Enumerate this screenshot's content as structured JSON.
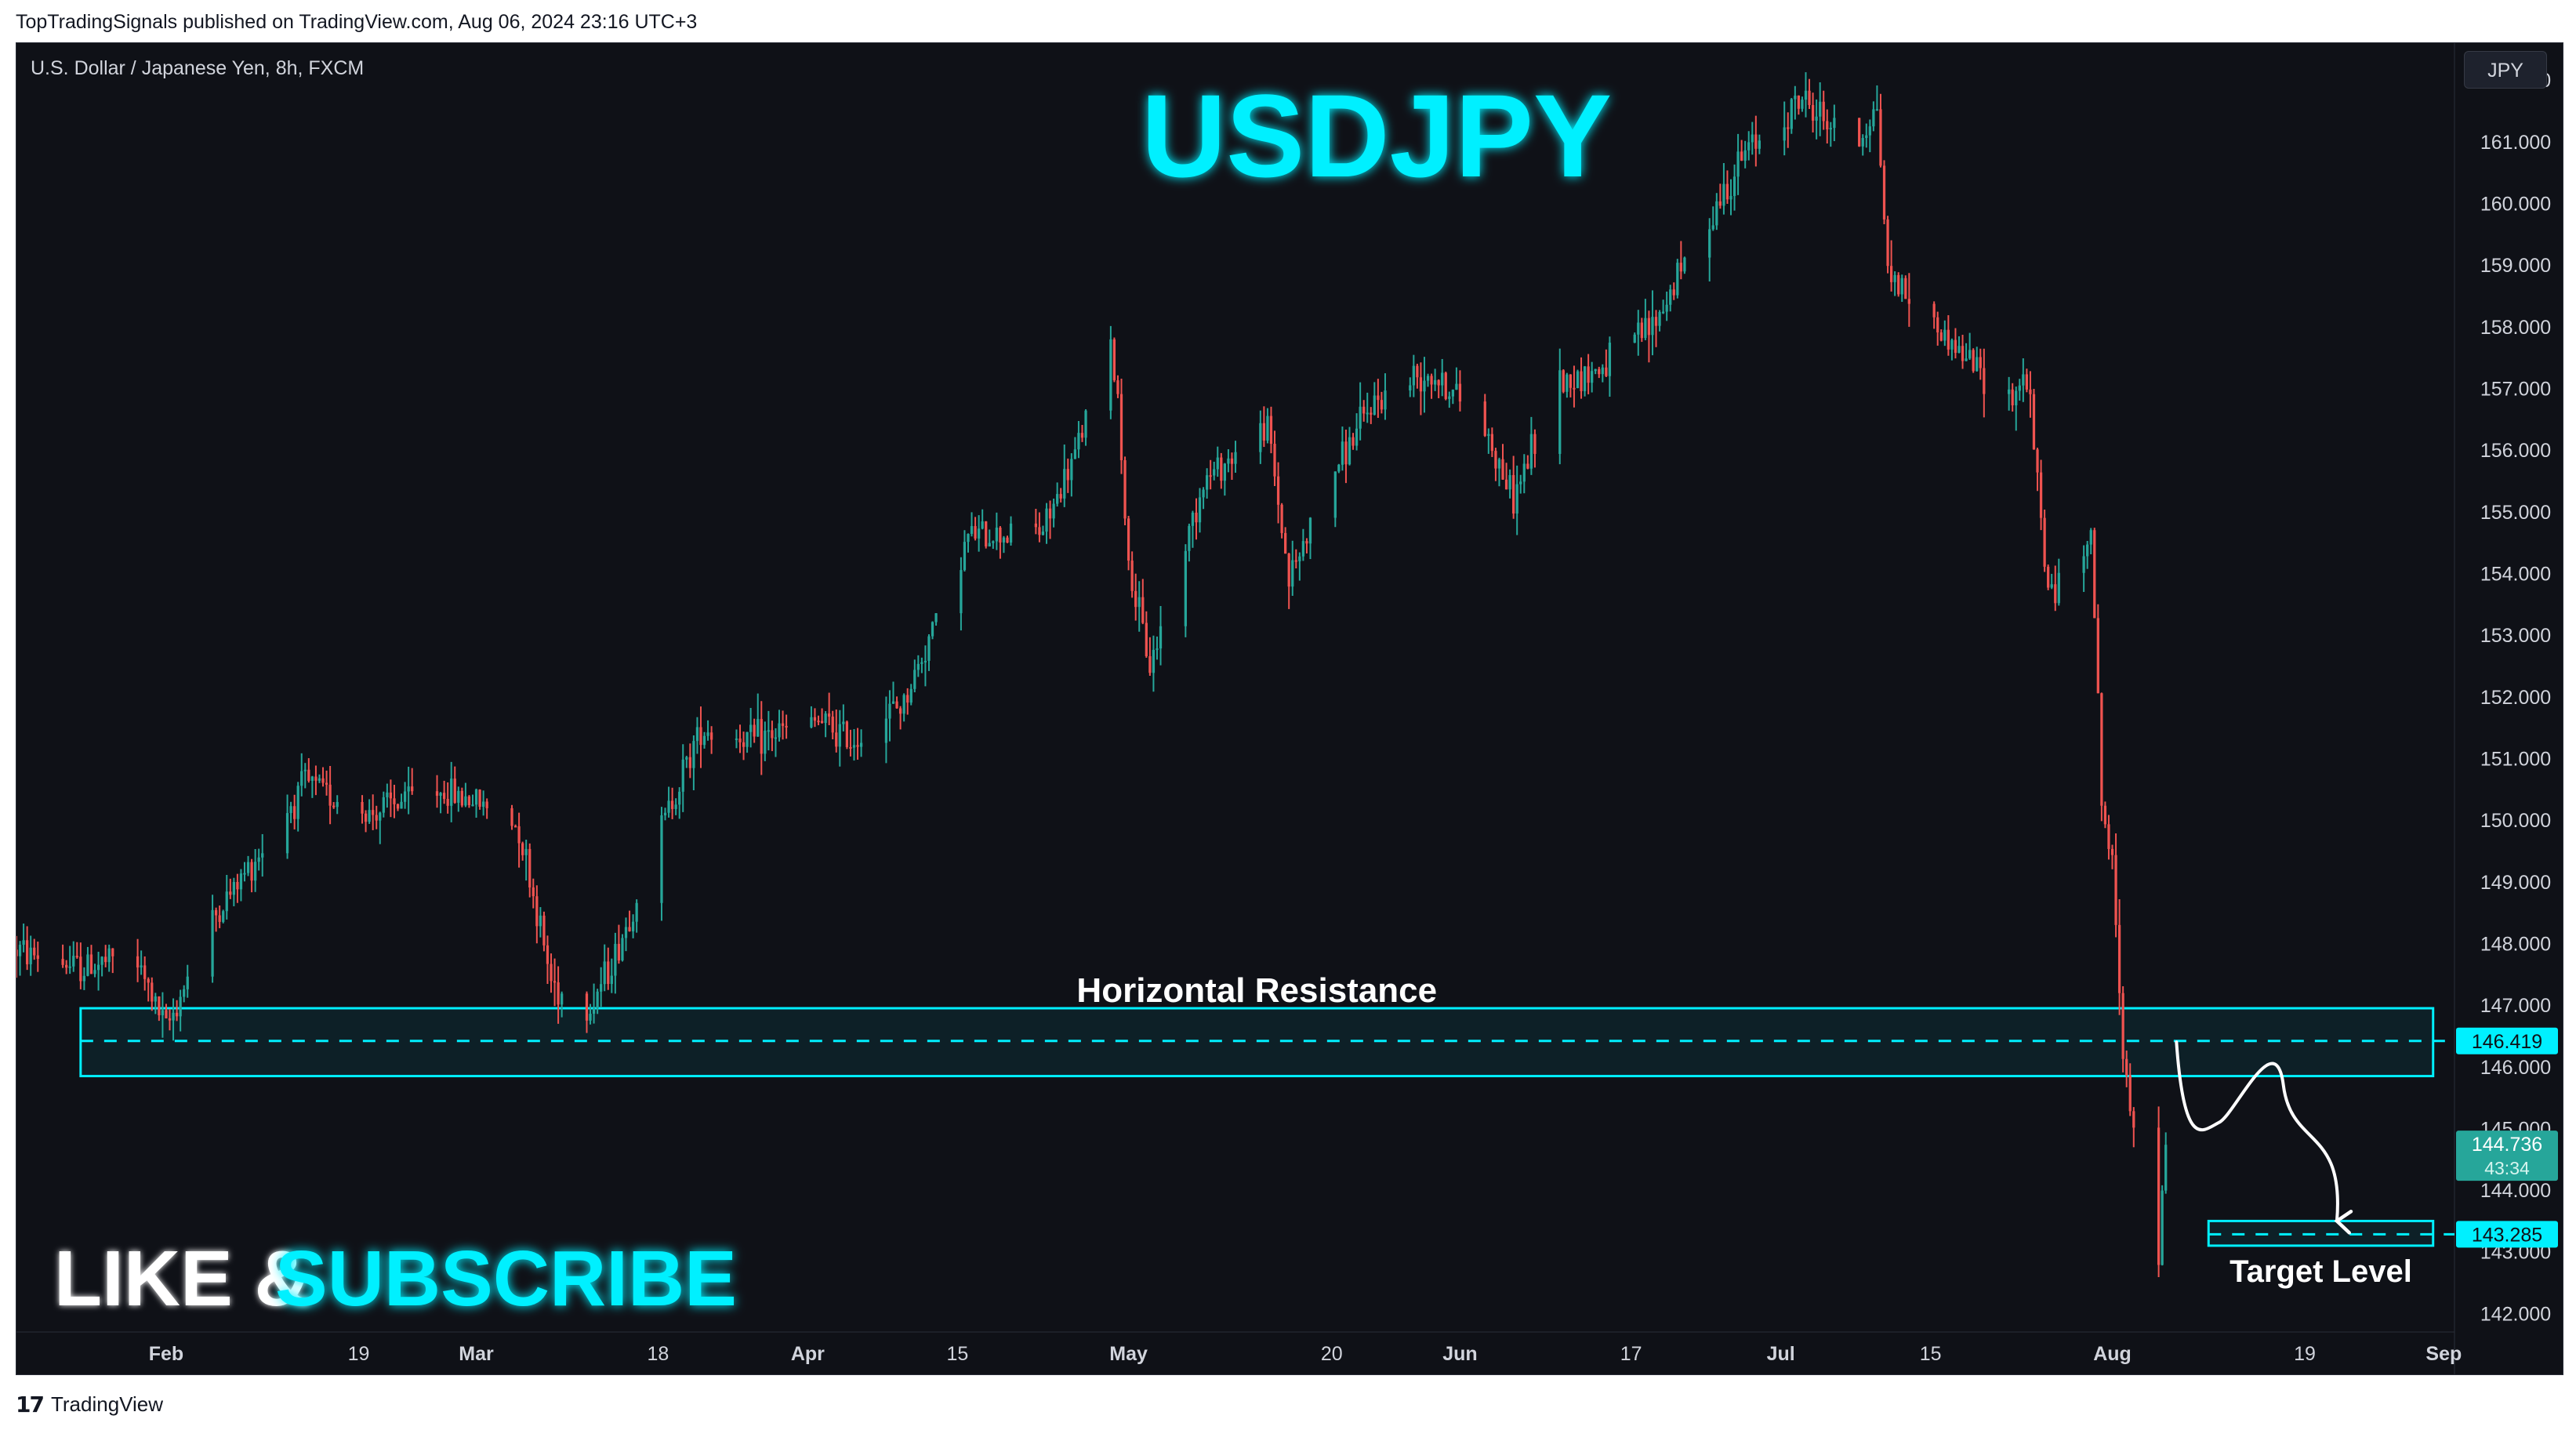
{
  "header": {
    "published_text": "TopTradingSignals published on TradingView.com, Aug 06, 2024 23:16 UTC+3"
  },
  "chart_header": {
    "symbol_description": "U.S. Dollar / Japanese Yen, 8h, FXCM",
    "currency_button": "JPY"
  },
  "footer": {
    "logo_mark": "17",
    "logo_text": "TradingView"
  },
  "colors": {
    "background": "#0f1117",
    "up_candle": "#26a69a",
    "down_candle": "#ef5350",
    "cyan_accent": "#00f0ff",
    "price_label_green": "#26a69a"
  },
  "chart_data": {
    "type": "candlestick",
    "title": "USDJPY",
    "symbol": "U.S. Dollar / Japanese Yen",
    "interval": "8h",
    "source": "FXCM",
    "y_axis": {
      "ylim": [
        141.7,
        162.6
      ],
      "ticks": [
        "162.000",
        "161.000",
        "160.000",
        "159.000",
        "158.000",
        "157.000",
        "156.000",
        "155.000",
        "154.000",
        "153.000",
        "152.000",
        "151.000",
        "150.000",
        "149.000",
        "148.000",
        "147.000",
        "146.000",
        "145.000",
        "144.000",
        "143.000",
        "142.000"
      ],
      "position": "right"
    },
    "x_axis": {
      "ticks": [
        "Feb",
        "19",
        "Mar",
        "18",
        "Apr",
        "15",
        "May",
        "20",
        "Jun",
        "17",
        "Jul",
        "15",
        "Aug",
        "19",
        "Sep"
      ],
      "month_ticks": [
        "Feb",
        "Mar",
        "Apr",
        "May",
        "Jun",
        "Jul",
        "Aug",
        "Sep"
      ],
      "tick_dates": [
        "2024-02-01",
        "2024-02-19",
        "2024-03-01",
        "2024-03-18",
        "2024-04-01",
        "2024-04-15",
        "2024-05-01",
        "2024-05-20",
        "2024-06-01",
        "2024-06-17",
        "2024-07-01",
        "2024-07-15",
        "2024-08-01",
        "2024-08-19",
        "2024-09-01"
      ],
      "range": [
        "2024-01-18",
        "2024-09-02"
      ]
    },
    "price_path": [
      [
        "2024-01-18",
        147.9
      ],
      [
        "2024-01-24",
        147.6
      ],
      [
        "2024-01-29",
        147.8
      ],
      [
        "2024-02-01",
        146.6
      ],
      [
        "2024-02-05",
        148.3
      ],
      [
        "2024-02-09",
        149.3
      ],
      [
        "2024-02-14",
        150.6
      ],
      [
        "2024-02-20",
        150.1
      ],
      [
        "2024-02-26",
        150.5
      ],
      [
        "2024-03-01",
        150.3
      ],
      [
        "2024-03-05",
        149.9
      ],
      [
        "2024-03-08",
        147.4
      ],
      [
        "2024-03-11",
        146.8
      ],
      [
        "2024-03-14",
        147.8
      ],
      [
        "2024-03-19",
        150.2
      ],
      [
        "2024-03-22",
        151.5
      ],
      [
        "2024-03-27",
        151.3
      ],
      [
        "2024-04-02",
        151.6
      ],
      [
        "2024-04-05",
        151.3
      ],
      [
        "2024-04-10",
        151.9
      ],
      [
        "2024-04-16",
        154.6
      ],
      [
        "2024-04-23",
        154.7
      ],
      [
        "2024-04-26",
        155.9
      ],
      [
        "2024-04-29",
        157.9
      ],
      [
        "2024-04-30",
        156.9
      ],
      [
        "2024-05-01",
        154.1
      ],
      [
        "2024-05-03",
        152.5
      ],
      [
        "2024-05-08",
        155.5
      ],
      [
        "2024-05-14",
        156.4
      ],
      [
        "2024-05-16",
        153.9
      ],
      [
        "2024-05-20",
        155.6
      ],
      [
        "2024-05-24",
        156.8
      ],
      [
        "2024-05-29",
        157.3
      ],
      [
        "2024-06-03",
        156.5
      ],
      [
        "2024-06-06",
        155.2
      ],
      [
        "2024-06-10",
        157.1
      ],
      [
        "2024-06-14",
        157.3
      ],
      [
        "2024-06-19",
        158.0
      ],
      [
        "2024-06-24",
        159.7
      ],
      [
        "2024-06-28",
        160.9
      ],
      [
        "2024-07-03",
        161.7
      ],
      [
        "2024-07-08",
        160.9
      ],
      [
        "2024-07-10",
        161.6
      ],
      [
        "2024-07-11",
        158.9
      ],
      [
        "2024-07-16",
        157.9
      ],
      [
        "2024-07-19",
        157.4
      ],
      [
        "2024-07-22",
        156.8
      ],
      [
        "2024-07-24",
        157.2
      ],
      [
        "2024-07-26",
        153.7
      ],
      [
        "2024-07-29",
        154.0
      ],
      [
        "2024-07-30",
        154.9
      ],
      [
        "2024-07-31",
        150.3
      ],
      [
        "2024-08-01",
        149.2
      ],
      [
        "2024-08-02",
        146.4
      ],
      [
        "2024-08-05",
        142.0
      ],
      [
        "2024-08-06",
        144.736
      ]
    ],
    "annotations": {
      "resistance_zone": {
        "label": "Horizontal Resistance",
        "y_top": 146.95,
        "y_bottom": 145.85,
        "y_mid": 146.419,
        "x_start": "2024-01-24",
        "x_end": "2024-08-31"
      },
      "target_zone": {
        "label": "Target Level",
        "y_top": 143.5,
        "y_bottom": 143.1,
        "x_start": "2024-08-10",
        "x_end": "2024-08-31"
      },
      "projection_path": [
        [
          "2024-08-07",
          146.4
        ],
        [
          "2024-08-11",
          145.1
        ],
        [
          "2024-08-17",
          145.7
        ],
        [
          "2024-08-22",
          143.5
        ]
      ]
    },
    "price_labels": [
      {
        "value": "146.419",
        "price": 146.419,
        "color": "#00f0ff",
        "text_color": "#0f1117"
      },
      {
        "value": "144.736",
        "price": 144.736,
        "color": "#26a69a",
        "text_color": "#ffffff",
        "countdown": "43:34"
      },
      {
        "value": "143.285",
        "price": 143.285,
        "color": "#00f0ff",
        "text_color": "#0f1117"
      }
    ],
    "overlay_text": {
      "big_title": "USDJPY",
      "like_text": "LIKE &",
      "subscribe_text": "SUBSCRIBE"
    }
  }
}
